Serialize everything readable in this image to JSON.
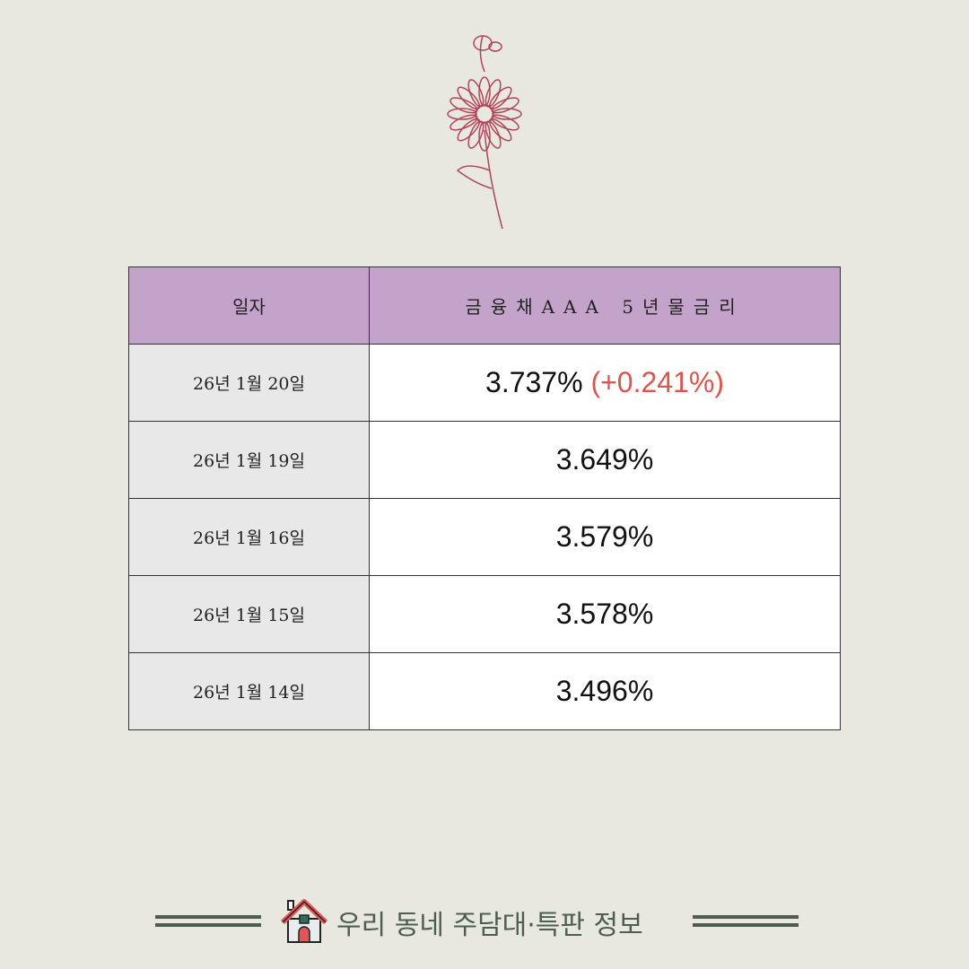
{
  "table": {
    "headers": [
      "일자",
      "금융채AAA 5년물금리"
    ],
    "rows": [
      {
        "date": "26년 1월 20일",
        "value": "3.737%",
        "change": "(+0.241%)"
      },
      {
        "date": "26년 1월 19일",
        "value": "3.649%"
      },
      {
        "date": "26년 1월 16일",
        "value": "3.579%"
      },
      {
        "date": "26년 1월 15일",
        "value": "3.578%"
      },
      {
        "date": "26년 1월 14일",
        "value": "3.496%"
      }
    ]
  },
  "footer": {
    "text": "우리 동네 주담대·특판 정보",
    "icon": "house-icon"
  },
  "colors": {
    "header_bg": "#c4a3cb",
    "change": "#d9574e",
    "footer": "#4e5e4e",
    "flower": "#b0455a"
  }
}
